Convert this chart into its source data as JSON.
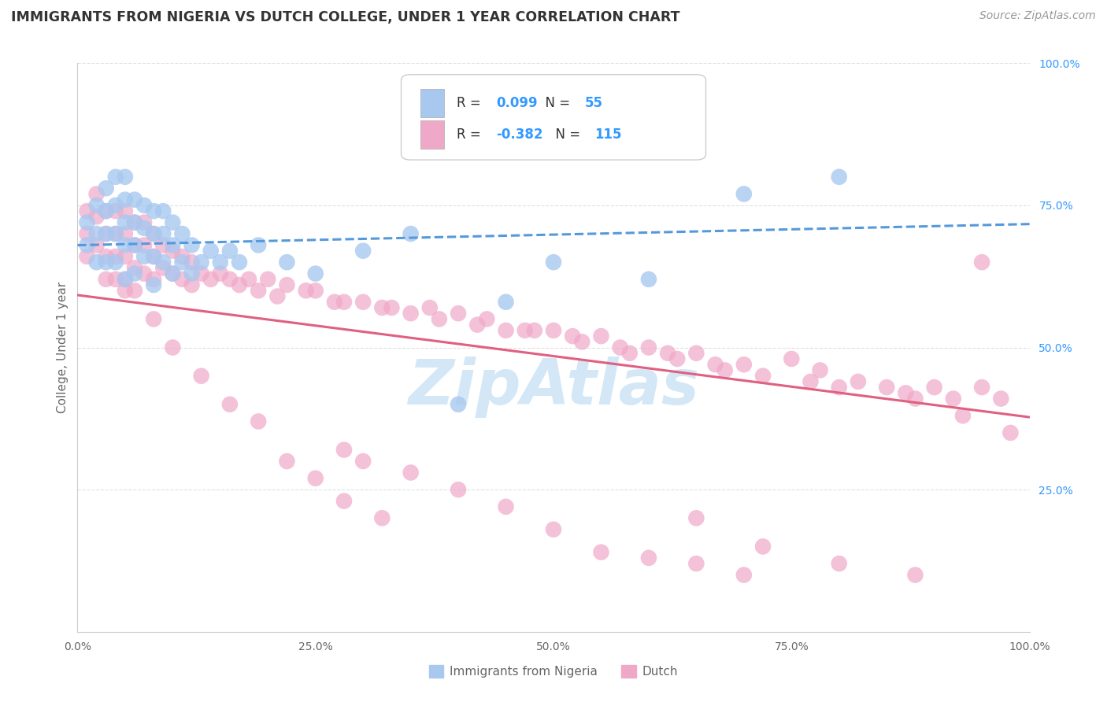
{
  "title": "IMMIGRANTS FROM NIGERIA VS DUTCH COLLEGE, UNDER 1 YEAR CORRELATION CHART",
  "source": "Source: ZipAtlas.com",
  "ylabel": "College, Under 1 year",
  "legend_label1": "Immigrants from Nigeria",
  "legend_label2": "Dutch",
  "r1": 0.099,
  "n1": 55,
  "r2": -0.382,
  "n2": 115,
  "blue_color": "#a8c8f0",
  "pink_color": "#f0a8c8",
  "blue_line_color": "#5599dd",
  "pink_line_color": "#e06080",
  "background_color": "#ffffff",
  "grid_color": "#dddddd",
  "watermark_color": "#b8d8f0",
  "title_color": "#333333",
  "axis_label_color": "#666666",
  "tick_color": "#3399ff",
  "blue_scatter_x": [
    0.01,
    0.01,
    0.02,
    0.02,
    0.02,
    0.03,
    0.03,
    0.03,
    0.03,
    0.04,
    0.04,
    0.04,
    0.04,
    0.05,
    0.05,
    0.05,
    0.05,
    0.05,
    0.06,
    0.06,
    0.06,
    0.06,
    0.07,
    0.07,
    0.07,
    0.08,
    0.08,
    0.08,
    0.08,
    0.09,
    0.09,
    0.09,
    0.1,
    0.1,
    0.1,
    0.11,
    0.11,
    0.12,
    0.12,
    0.13,
    0.14,
    0.15,
    0.16,
    0.17,
    0.19,
    0.22,
    0.25,
    0.3,
    0.35,
    0.4,
    0.45,
    0.5,
    0.6,
    0.7,
    0.8
  ],
  "blue_scatter_y": [
    0.68,
    0.72,
    0.75,
    0.7,
    0.65,
    0.78,
    0.74,
    0.7,
    0.65,
    0.8,
    0.75,
    0.7,
    0.65,
    0.8,
    0.76,
    0.72,
    0.68,
    0.62,
    0.76,
    0.72,
    0.68,
    0.63,
    0.75,
    0.71,
    0.66,
    0.74,
    0.7,
    0.66,
    0.61,
    0.74,
    0.7,
    0.65,
    0.72,
    0.68,
    0.63,
    0.7,
    0.65,
    0.68,
    0.63,
    0.65,
    0.67,
    0.65,
    0.67,
    0.65,
    0.68,
    0.65,
    0.63,
    0.67,
    0.7,
    0.4,
    0.58,
    0.65,
    0.62,
    0.77,
    0.8
  ],
  "pink_scatter_x": [
    0.01,
    0.01,
    0.01,
    0.02,
    0.02,
    0.02,
    0.03,
    0.03,
    0.03,
    0.03,
    0.04,
    0.04,
    0.04,
    0.04,
    0.05,
    0.05,
    0.05,
    0.05,
    0.06,
    0.06,
    0.06,
    0.06,
    0.07,
    0.07,
    0.07,
    0.08,
    0.08,
    0.08,
    0.09,
    0.09,
    0.1,
    0.1,
    0.11,
    0.11,
    0.12,
    0.12,
    0.13,
    0.14,
    0.15,
    0.16,
    0.17,
    0.18,
    0.19,
    0.2,
    0.21,
    0.22,
    0.24,
    0.25,
    0.27,
    0.28,
    0.3,
    0.32,
    0.33,
    0.35,
    0.37,
    0.38,
    0.4,
    0.42,
    0.43,
    0.45,
    0.47,
    0.48,
    0.5,
    0.52,
    0.53,
    0.55,
    0.57,
    0.58,
    0.6,
    0.62,
    0.63,
    0.65,
    0.67,
    0.68,
    0.7,
    0.72,
    0.75,
    0.77,
    0.78,
    0.8,
    0.82,
    0.85,
    0.87,
    0.88,
    0.9,
    0.92,
    0.93,
    0.95,
    0.97,
    0.98,
    0.28,
    0.3,
    0.35,
    0.4,
    0.45,
    0.5,
    0.55,
    0.6,
    0.65,
    0.7,
    0.05,
    0.08,
    0.1,
    0.13,
    0.16,
    0.19,
    0.22,
    0.25,
    0.28,
    0.32,
    0.65,
    0.72,
    0.8,
    0.88,
    0.95
  ],
  "pink_scatter_y": [
    0.74,
    0.7,
    0.66,
    0.77,
    0.73,
    0.68,
    0.74,
    0.7,
    0.66,
    0.62,
    0.74,
    0.7,
    0.66,
    0.62,
    0.74,
    0.7,
    0.66,
    0.62,
    0.72,
    0.68,
    0.64,
    0.6,
    0.72,
    0.68,
    0.63,
    0.7,
    0.66,
    0.62,
    0.68,
    0.64,
    0.67,
    0.63,
    0.66,
    0.62,
    0.65,
    0.61,
    0.63,
    0.62,
    0.63,
    0.62,
    0.61,
    0.62,
    0.6,
    0.62,
    0.59,
    0.61,
    0.6,
    0.6,
    0.58,
    0.58,
    0.58,
    0.57,
    0.57,
    0.56,
    0.57,
    0.55,
    0.56,
    0.54,
    0.55,
    0.53,
    0.53,
    0.53,
    0.53,
    0.52,
    0.51,
    0.52,
    0.5,
    0.49,
    0.5,
    0.49,
    0.48,
    0.49,
    0.47,
    0.46,
    0.47,
    0.45,
    0.48,
    0.44,
    0.46,
    0.43,
    0.44,
    0.43,
    0.42,
    0.41,
    0.43,
    0.41,
    0.38,
    0.43,
    0.41,
    0.35,
    0.32,
    0.3,
    0.28,
    0.25,
    0.22,
    0.18,
    0.14,
    0.13,
    0.12,
    0.1,
    0.6,
    0.55,
    0.5,
    0.45,
    0.4,
    0.37,
    0.3,
    0.27,
    0.23,
    0.2,
    0.2,
    0.15,
    0.12,
    0.1,
    0.65
  ]
}
